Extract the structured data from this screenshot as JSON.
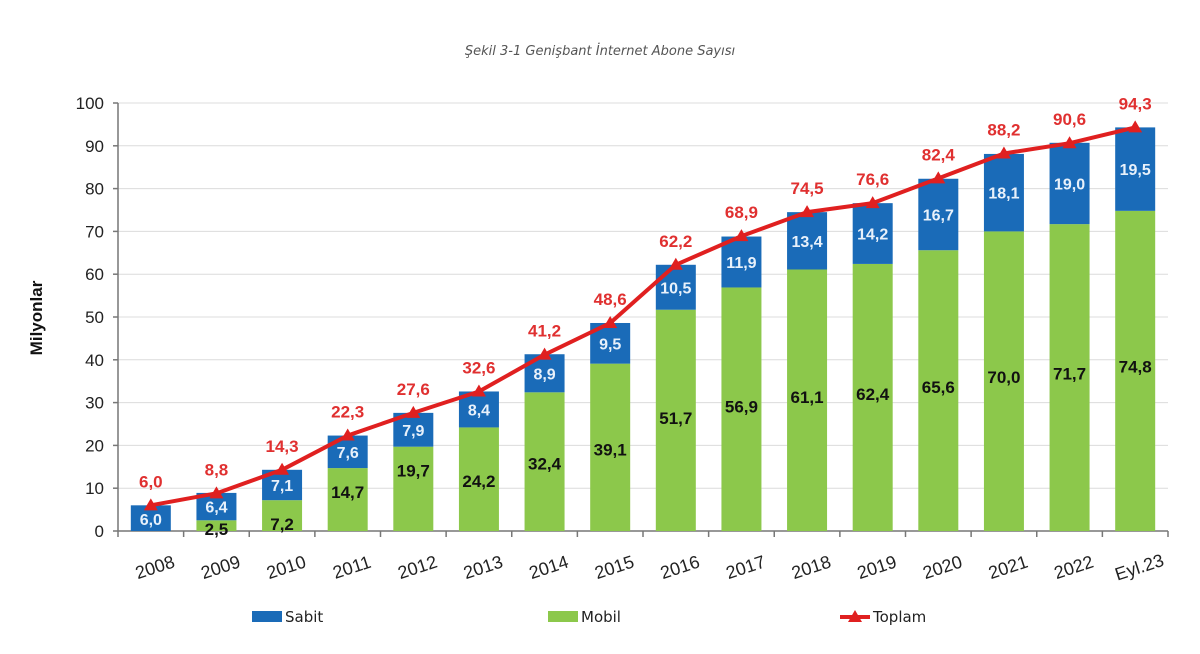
{
  "chart_data": {
    "type": "bar",
    "subtype": "stacked-bar-with-line",
    "title": "Şekil 3-1 Genişbant İnternet Abone Sayısı",
    "xlabel": "",
    "ylabel": "Milyonlar",
    "ylim": [
      0,
      100
    ],
    "yticks": [
      0,
      10,
      20,
      30,
      40,
      50,
      60,
      70,
      80,
      90,
      100
    ],
    "grid": true,
    "legend_position": "bottom",
    "categories": [
      "2008",
      "2009",
      "2010",
      "2011",
      "2012",
      "2013",
      "2014",
      "2015",
      "2016",
      "2017",
      "2018",
      "2019",
      "2020",
      "2021",
      "2022",
      "Eyl.23"
    ],
    "series": [
      {
        "name": "Mobil",
        "type": "bar",
        "color": "#8cc84b",
        "values": [
          0,
          2.5,
          7.2,
          14.7,
          19.7,
          24.2,
          32.4,
          39.1,
          51.7,
          56.9,
          61.1,
          62.4,
          65.6,
          70.0,
          71.7,
          74.8
        ],
        "labels": [
          "",
          "2,5",
          "7,2",
          "14,7",
          "19,7",
          "24,2",
          "32,4",
          "39,1",
          "51,7",
          "56,9",
          "61,1",
          "62,4",
          "65,6",
          "70,0",
          "71,7",
          "74,8"
        ]
      },
      {
        "name": "Sabit",
        "type": "bar",
        "color": "#1a6bb8",
        "values": [
          6.0,
          6.4,
          7.1,
          7.6,
          7.9,
          8.4,
          8.9,
          9.5,
          10.5,
          11.9,
          13.4,
          14.2,
          16.7,
          18.1,
          19.0,
          19.5
        ],
        "labels": [
          "6,0",
          "6,4",
          "7,1",
          "7,6",
          "7,9",
          "8,4",
          "8,9",
          "9,5",
          "10,5",
          "11,9",
          "13,4",
          "14,2",
          "16,7",
          "18,1",
          "19,0",
          "19,5"
        ]
      },
      {
        "name": "Toplam",
        "type": "line",
        "color": "#e02020",
        "values": [
          6.0,
          8.8,
          14.3,
          22.3,
          27.6,
          32.6,
          41.2,
          48.6,
          62.2,
          68.9,
          74.5,
          76.6,
          82.4,
          88.2,
          90.6,
          94.3
        ],
        "labels": [
          "6,0",
          "8,8",
          "14,3",
          "22,3",
          "27,6",
          "32,6",
          "41,2",
          "48,6",
          "62,2",
          "68,9",
          "74,5",
          "76,6",
          "82,4",
          "88,2",
          "90,6",
          "94,3"
        ]
      }
    ],
    "legend": [
      {
        "name": "Sabit",
        "symbol": "square",
        "color": "#1a6bb8"
      },
      {
        "name": "Mobil",
        "symbol": "square",
        "color": "#8cc84b"
      },
      {
        "name": "Toplam",
        "symbol": "line-triangle",
        "color": "#e02020"
      }
    ]
  }
}
